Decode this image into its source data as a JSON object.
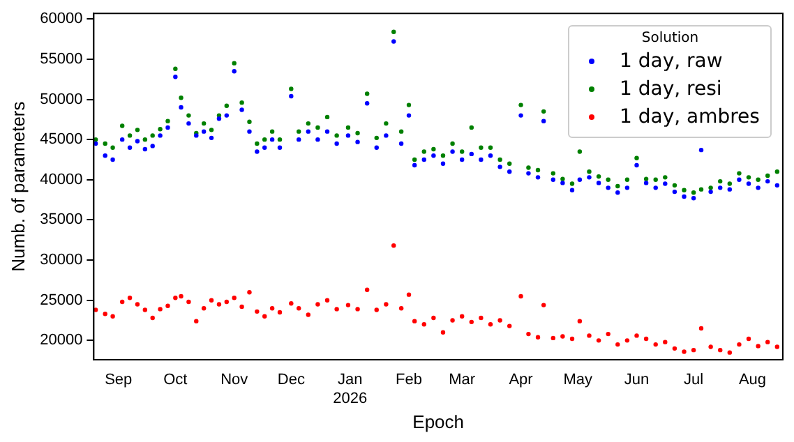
{
  "chart_data": {
    "type": "scatter",
    "xlabel": "Epoch",
    "ylabel": "Numb. of parameters",
    "legend_title": "Solution",
    "legend": "top right",
    "marker": "circle",
    "grid": false,
    "xlim": [
      "2025-08-19",
      "2026-08-17"
    ],
    "xticks": [
      {
        "value": "2025-09-01",
        "label": "Sep"
      },
      {
        "value": "2025-10-01",
        "label": "Oct"
      },
      {
        "value": "2025-11-01",
        "label": "Nov"
      },
      {
        "value": "2025-12-01",
        "label": "Dec"
      },
      {
        "value": "2026-01-01",
        "label": "Jan\n2026"
      },
      {
        "value": "2026-02-01",
        "label": "Feb"
      },
      {
        "value": "2026-03-01",
        "label": "Mar"
      },
      {
        "value": "2026-04-01",
        "label": "Apr"
      },
      {
        "value": "2026-05-01",
        "label": "May"
      },
      {
        "value": "2026-06-01",
        "label": "Jun"
      },
      {
        "value": "2026-07-01",
        "label": "Jul"
      },
      {
        "value": "2026-08-01",
        "label": "Aug"
      }
    ],
    "ylim": [
      17600,
      60700
    ],
    "yticks": [
      20000,
      25000,
      30000,
      35000,
      40000,
      45000,
      50000,
      55000,
      60000
    ],
    "x": [
      "2025-08-20",
      "2025-08-25",
      "2025-08-29",
      "2025-09-03",
      "2025-09-07",
      "2025-09-11",
      "2025-09-15",
      "2025-09-19",
      "2025-09-23",
      "2025-09-27",
      "2025-10-01",
      "2025-10-04",
      "2025-10-08",
      "2025-10-12",
      "2025-10-16",
      "2025-10-20",
      "2025-10-24",
      "2025-10-28",
      "2025-11-01",
      "2025-11-05",
      "2025-11-09",
      "2025-11-13",
      "2025-11-17",
      "2025-11-21",
      "2025-11-25",
      "2025-12-01",
      "2025-12-05",
      "2025-12-10",
      "2025-12-15",
      "2025-12-20",
      "2025-12-25",
      "2025-12-31",
      "2026-01-05",
      "2026-01-10",
      "2026-01-15",
      "2026-01-20",
      "2026-01-24",
      "2026-01-28",
      "2026-02-01",
      "2026-02-04",
      "2026-02-09",
      "2026-02-14",
      "2026-02-19",
      "2026-02-24",
      "2026-03-01",
      "2026-03-06",
      "2026-03-11",
      "2026-03-16",
      "2026-03-21",
      "2026-03-26",
      "2026-04-01",
      "2026-04-05",
      "2026-04-10",
      "2026-04-13",
      "2026-04-18",
      "2026-04-23",
      "2026-04-28",
      "2026-05-02",
      "2026-05-07",
      "2026-05-12",
      "2026-05-17",
      "2026-05-22",
      "2026-05-27",
      "2026-06-01",
      "2026-06-06",
      "2026-06-11",
      "2026-06-16",
      "2026-06-21",
      "2026-06-26",
      "2026-07-01",
      "2026-07-05",
      "2026-07-10",
      "2026-07-15",
      "2026-07-20",
      "2026-07-25",
      "2026-07-30",
      "2026-08-04",
      "2026-08-09",
      "2026-08-14"
    ],
    "series": [
      {
        "name": "1 day, raw",
        "color": "#0000ff",
        "values": [
          44500,
          43000,
          42500,
          45000,
          44000,
          44800,
          43800,
          44200,
          45500,
          46500,
          52800,
          49000,
          47000,
          45500,
          46000,
          45200,
          47600,
          48000,
          53500,
          48700,
          46000,
          43500,
          44000,
          45000,
          44000,
          50400,
          45000,
          46000,
          45000,
          46000,
          44500,
          45500,
          44700,
          49500,
          44000,
          45500,
          57200,
          44500,
          48000,
          41800,
          42500,
          43000,
          42000,
          43500,
          42500,
          43200,
          42500,
          43000,
          41600,
          41000,
          48000,
          40800,
          40300,
          47300,
          40000,
          39600,
          38700,
          40000,
          40300,
          39600,
          39000,
          38400,
          39000,
          41800,
          39600,
          39000,
          39500,
          38500,
          37900,
          37700,
          43700,
          38500,
          39000,
          38800,
          40000,
          39500,
          39000,
          39800,
          39300
        ]
      },
      {
        "name": "1 day, resi",
        "color": "#008000",
        "values": [
          45000,
          44500,
          44000,
          46700,
          45500,
          46200,
          45000,
          45500,
          46300,
          47300,
          53800,
          50200,
          48000,
          45800,
          47000,
          46200,
          48000,
          49200,
          54500,
          49600,
          47200,
          44500,
          45000,
          46000,
          45000,
          51300,
          46000,
          47000,
          46500,
          47800,
          45500,
          46500,
          45800,
          50700,
          45200,
          47000,
          58400,
          46000,
          49300,
          42500,
          43500,
          43800,
          43000,
          44500,
          43500,
          46500,
          44000,
          44000,
          42500,
          42000,
          49300,
          41500,
          41200,
          48500,
          40800,
          40100,
          39500,
          43500,
          41000,
          40400,
          40000,
          39200,
          40000,
          42700,
          40100,
          40000,
          40300,
          39300,
          38700,
          38400,
          38800,
          39000,
          39800,
          39500,
          40800,
          40300,
          40000,
          40500,
          41000
        ]
      },
      {
        "name": "1 day, ambres",
        "color": "#ff0000",
        "values": [
          23800,
          23300,
          23000,
          24800,
          25300,
          24500,
          23800,
          22800,
          23900,
          24300,
          25300,
          25500,
          24800,
          22400,
          24000,
          25000,
          24500,
          24800,
          25300,
          24200,
          26000,
          23600,
          23000,
          24000,
          23500,
          24600,
          24000,
          23200,
          24500,
          25000,
          23900,
          24400,
          23900,
          26300,
          23800,
          24500,
          31800,
          24000,
          25700,
          22400,
          22000,
          22800,
          21000,
          22500,
          23000,
          22300,
          22800,
          22000,
          22500,
          21800,
          25500,
          20800,
          20400,
          24400,
          20300,
          20500,
          20200,
          22400,
          20600,
          20000,
          20800,
          19500,
          20000,
          20600,
          20200,
          19500,
          19800,
          19000,
          18600,
          18800,
          21500,
          19200,
          18800,
          18500,
          19500,
          20200,
          19300,
          19800,
          19200
        ]
      }
    ]
  }
}
